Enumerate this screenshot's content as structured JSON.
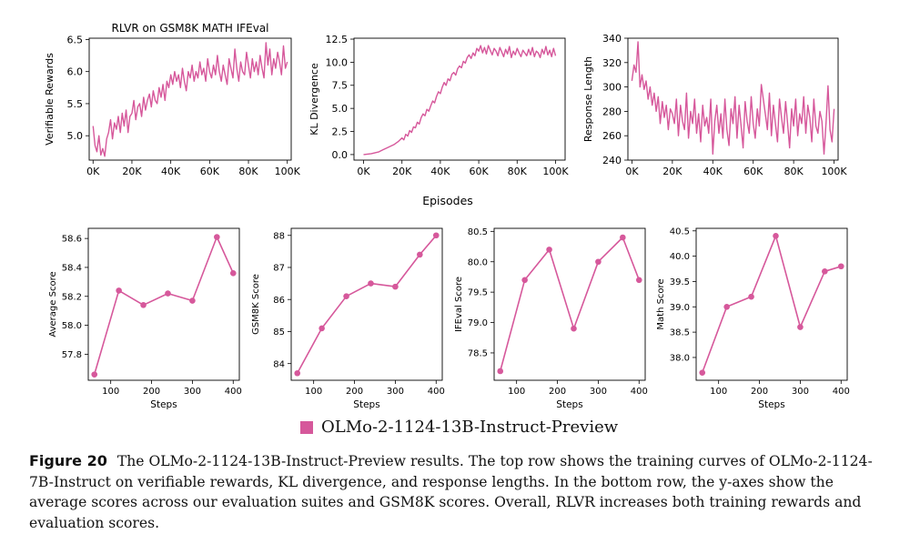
{
  "colors": {
    "series": "#d6589b",
    "axis": "#000000",
    "grid": "#ffffff"
  },
  "top_xlabel": "Episodes",
  "legend": {
    "label": "OLMo-2-1124-13B-Instruct-Preview"
  },
  "caption": {
    "label": "Figure 20",
    "text": "The OLMo-2-1124-13B-Instruct-Preview results. The top row shows the training curves of OLMo-2-1124-7B-Instruct on verifiable rewards, KL divergence, and response lengths. In the bottom row, the y-axes show the average scores across our evaluation suites and GSM8K scores. Overall, RLVR increases both training rewards and evaluation scores."
  },
  "chart_data": [
    {
      "type": "line",
      "title": "RLVR on GSM8K MATH IFEval",
      "xlabel": "",
      "ylabel": "Verifiable Rewards",
      "xlim": [
        -2000,
        102000
      ],
      "ylim": [
        4.62,
        6.52
      ],
      "xticks": [
        0,
        20000,
        40000,
        60000,
        80000,
        100000
      ],
      "xticklabels": [
        "0K",
        "20K",
        "40K",
        "60K",
        "80K",
        "100K"
      ],
      "yticks": [
        5.0,
        5.5,
        6.0,
        6.5
      ],
      "yticklabels": [
        "5.0",
        "5.5",
        "6.0",
        "6.5"
      ],
      "x": [
        0,
        1000,
        2000,
        3000,
        4000,
        5000,
        6000,
        7000,
        8000,
        9000,
        10000,
        11000,
        12000,
        13000,
        14000,
        15000,
        16000,
        17000,
        18000,
        19000,
        20000,
        21000,
        22000,
        23000,
        24000,
        25000,
        26000,
        27000,
        28000,
        29000,
        30000,
        31000,
        32000,
        33000,
        34000,
        35000,
        36000,
        37000,
        38000,
        39000,
        40000,
        41000,
        42000,
        43000,
        44000,
        45000,
        46000,
        47000,
        48000,
        49000,
        50000,
        51000,
        52000,
        53000,
        54000,
        55000,
        56000,
        57000,
        58000,
        59000,
        60000,
        61000,
        62000,
        63000,
        64000,
        65000,
        66000,
        67000,
        68000,
        69000,
        70000,
        71000,
        72000,
        73000,
        74000,
        75000,
        76000,
        77000,
        78000,
        79000,
        80000,
        81000,
        82000,
        83000,
        84000,
        85000,
        86000,
        87000,
        88000,
        89000,
        90000,
        91000,
        92000,
        93000,
        94000,
        95000,
        96000,
        97000,
        98000,
        99000,
        100000
      ],
      "y": [
        5.15,
        4.85,
        4.75,
        5.0,
        4.7,
        4.8,
        4.68,
        4.95,
        5.05,
        5.25,
        4.95,
        5.2,
        5.1,
        5.3,
        5.05,
        5.35,
        5.15,
        5.4,
        5.05,
        5.3,
        5.35,
        5.55,
        5.25,
        5.45,
        5.5,
        5.3,
        5.6,
        5.4,
        5.55,
        5.65,
        5.45,
        5.7,
        5.55,
        5.5,
        5.75,
        5.6,
        5.8,
        5.55,
        5.85,
        5.75,
        5.95,
        5.8,
        6.0,
        5.85,
        5.95,
        5.75,
        6.05,
        5.85,
        5.7,
        6.0,
        5.9,
        6.1,
        5.85,
        6.0,
        5.9,
        6.15,
        5.95,
        6.05,
        5.85,
        6.2,
        6.0,
        5.9,
        6.1,
        5.95,
        6.25,
        6.0,
        5.85,
        6.1,
        5.95,
        5.8,
        6.2,
        6.05,
        5.9,
        6.35,
        6.05,
        5.85,
        6.15,
        6.0,
        5.95,
        6.3,
        6.1,
        5.9,
        6.2,
        6.0,
        6.15,
        5.95,
        6.25,
        6.05,
        5.9,
        6.45,
        6.1,
        6.35,
        5.95,
        6.2,
        6.05,
        6.3,
        6.15,
        5.95,
        6.4,
        6.05,
        6.15
      ]
    },
    {
      "type": "line",
      "title": "",
      "xlabel": "",
      "ylabel": "KL Divergence",
      "xlim": [
        -5000,
        105000
      ],
      "ylim": [
        -0.6,
        12.6
      ],
      "xticks": [
        0,
        20000,
        40000,
        60000,
        80000,
        100000
      ],
      "xticklabels": [
        "0K",
        "20K",
        "40K",
        "60K",
        "80K",
        "100K"
      ],
      "yticks": [
        0.0,
        2.5,
        5.0,
        7.5,
        10.0,
        12.5
      ],
      "yticklabels": [
        "0.0",
        "2.5",
        "5.0",
        "7.5",
        "10.0",
        "12.5"
      ],
      "x": [
        0,
        2000,
        4000,
        6000,
        8000,
        10000,
        12000,
        14000,
        16000,
        18000,
        20000,
        21000,
        22000,
        23000,
        24000,
        25000,
        26000,
        27000,
        28000,
        29000,
        30000,
        31000,
        32000,
        33000,
        34000,
        35000,
        36000,
        37000,
        38000,
        39000,
        40000,
        41000,
        42000,
        43000,
        44000,
        45000,
        46000,
        47000,
        48000,
        49000,
        50000,
        51000,
        52000,
        53000,
        54000,
        55000,
        56000,
        57000,
        58000,
        59000,
        60000,
        61000,
        62000,
        63000,
        64000,
        65000,
        66000,
        67000,
        68000,
        69000,
        70000,
        71000,
        72000,
        73000,
        74000,
        75000,
        76000,
        77000,
        78000,
        79000,
        80000,
        81000,
        82000,
        83000,
        84000,
        85000,
        86000,
        87000,
        88000,
        89000,
        90000,
        91000,
        92000,
        93000,
        94000,
        95000,
        96000,
        97000,
        98000,
        99000,
        100000
      ],
      "y": [
        0.0,
        0.05,
        0.1,
        0.2,
        0.3,
        0.5,
        0.7,
        0.9,
        1.1,
        1.4,
        1.8,
        1.6,
        2.2,
        2.0,
        2.6,
        2.4,
        3.0,
        2.9,
        3.5,
        3.3,
        4.0,
        4.4,
        4.2,
        4.9,
        4.7,
        5.3,
        5.8,
        5.6,
        6.3,
        6.8,
        6.6,
        7.3,
        7.8,
        7.5,
        8.2,
        8.0,
        8.7,
        8.9,
        8.6,
        9.3,
        9.6,
        9.4,
        10.1,
        9.9,
        10.5,
        10.8,
        10.4,
        11.0,
        10.7,
        11.5,
        11.2,
        11.8,
        11.0,
        11.6,
        10.9,
        11.8,
        11.3,
        10.8,
        11.5,
        11.2,
        10.7,
        11.6,
        11.1,
        10.6,
        11.4,
        10.9,
        11.7,
        10.5,
        11.2,
        10.8,
        11.5,
        11.0,
        10.6,
        11.3,
        11.0,
        10.7,
        11.4,
        10.8,
        11.6,
        10.6,
        11.2,
        11.0,
        10.5,
        11.4,
        10.9,
        11.7,
        10.8,
        11.3,
        10.6,
        11.5,
        10.7
      ]
    },
    {
      "type": "line",
      "title": "",
      "xlabel": "",
      "ylabel": "Response Length",
      "xlim": [
        -2000,
        102000
      ],
      "ylim": [
        240,
        340
      ],
      "xticks": [
        0,
        20000,
        40000,
        60000,
        80000,
        100000
      ],
      "xticklabels": [
        "0K",
        "20K",
        "40K",
        "60K",
        "80K",
        "100K"
      ],
      "yticks": [
        240,
        260,
        280,
        300,
        320,
        340
      ],
      "yticklabels": [
        "240",
        "260",
        "280",
        "300",
        "320",
        "340"
      ],
      "x": [
        0,
        1000,
        2000,
        3000,
        4000,
        5000,
        6000,
        7000,
        8000,
        9000,
        10000,
        11000,
        12000,
        13000,
        14000,
        15000,
        16000,
        17000,
        18000,
        19000,
        20000,
        21000,
        22000,
        23000,
        24000,
        25000,
        26000,
        27000,
        28000,
        29000,
        30000,
        31000,
        32000,
        33000,
        34000,
        35000,
        36000,
        37000,
        38000,
        39000,
        40000,
        41000,
        42000,
        43000,
        44000,
        45000,
        46000,
        47000,
        48000,
        49000,
        50000,
        51000,
        52000,
        53000,
        54000,
        55000,
        56000,
        57000,
        58000,
        59000,
        60000,
        61000,
        62000,
        63000,
        64000,
        65000,
        66000,
        67000,
        68000,
        69000,
        70000,
        71000,
        72000,
        73000,
        74000,
        75000,
        76000,
        77000,
        78000,
        79000,
        80000,
        81000,
        82000,
        83000,
        84000,
        85000,
        86000,
        87000,
        88000,
        89000,
        90000,
        91000,
        92000,
        93000,
        94000,
        95000,
        96000,
        97000,
        98000,
        99000,
        100000
      ],
      "y": [
        305,
        318,
        312,
        337,
        300,
        310,
        298,
        305,
        290,
        300,
        285,
        295,
        280,
        292,
        270,
        288,
        275,
        285,
        265,
        282,
        278,
        270,
        290,
        260,
        285,
        272,
        265,
        295,
        258,
        280,
        270,
        290,
        262,
        278,
        255,
        285,
        268,
        275,
        262,
        290,
        245,
        272,
        285,
        262,
        278,
        258,
        290,
        265,
        252,
        282,
        270,
        292,
        258,
        285,
        268,
        250,
        288,
        272,
        262,
        292,
        270,
        258,
        282,
        268,
        302,
        290,
        278,
        265,
        295,
        260,
        285,
        270,
        255,
        290,
        275,
        262,
        288,
        270,
        250,
        282,
        268,
        290,
        260,
        278,
        270,
        292,
        262,
        285,
        275,
        255,
        290,
        268,
        262,
        280,
        272,
        245,
        270,
        301,
        265,
        255,
        282
      ]
    },
    {
      "type": "line",
      "title": "",
      "xlabel": "Steps",
      "ylabel": "Average Score",
      "xlim": [
        45,
        415
      ],
      "ylim": [
        57.62,
        58.67
      ],
      "xticks": [
        100,
        200,
        300,
        400
      ],
      "xticklabels": [
        "100",
        "200",
        "300",
        "400"
      ],
      "yticks": [
        57.8,
        58.0,
        58.2,
        58.4,
        58.6
      ],
      "yticklabels": [
        "57.8",
        "58.0",
        "58.2",
        "58.4",
        "58.6"
      ],
      "x": [
        60,
        120,
        180,
        240,
        300,
        360,
        400
      ],
      "y": [
        57.66,
        58.24,
        58.14,
        58.22,
        58.17,
        58.61,
        58.36
      ],
      "markers": true
    },
    {
      "type": "line",
      "title": "",
      "xlabel": "Steps",
      "ylabel": "GSM8K Score",
      "xlim": [
        45,
        415
      ],
      "ylim": [
        83.48,
        88.22
      ],
      "xticks": [
        100,
        200,
        300,
        400
      ],
      "xticklabels": [
        "100",
        "200",
        "300",
        "400"
      ],
      "yticks": [
        84,
        85,
        86,
        87,
        88
      ],
      "yticklabels": [
        "84",
        "85",
        "86",
        "87",
        "88"
      ],
      "x": [
        60,
        120,
        180,
        240,
        300,
        360,
        400
      ],
      "y": [
        83.7,
        85.1,
        86.1,
        86.5,
        86.4,
        87.4,
        88.0
      ],
      "markers": true
    },
    {
      "type": "line",
      "title": "",
      "xlabel": "Steps",
      "ylabel": "IFEval Score",
      "xlim": [
        45,
        415
      ],
      "ylim": [
        78.05,
        80.55
      ],
      "xticks": [
        100,
        200,
        300,
        400
      ],
      "xticklabels": [
        "100",
        "200",
        "300",
        "400"
      ],
      "yticks": [
        78.5,
        79.0,
        79.5,
        80.0,
        80.5
      ],
      "yticklabels": [
        "78.5",
        "79.0",
        "79.5",
        "80.0",
        "80.5"
      ],
      "x": [
        60,
        120,
        180,
        240,
        300,
        360,
        400
      ],
      "y": [
        78.2,
        79.7,
        80.2,
        78.9,
        80.0,
        80.4,
        79.7
      ],
      "markers": true
    },
    {
      "type": "line",
      "title": "",
      "xlabel": "Steps",
      "ylabel": "Math Score",
      "xlim": [
        45,
        415
      ],
      "ylim": [
        37.55,
        40.55
      ],
      "xticks": [
        100,
        200,
        300,
        400
      ],
      "xticklabels": [
        "100",
        "200",
        "300",
        "400"
      ],
      "yticks": [
        38.0,
        38.5,
        39.0,
        39.5,
        40.0,
        40.5
      ],
      "yticklabels": [
        "38.0",
        "38.5",
        "39.0",
        "39.5",
        "40.0",
        "40.5"
      ],
      "x": [
        60,
        120,
        180,
        240,
        300,
        360,
        400
      ],
      "y": [
        37.7,
        39.0,
        39.2,
        40.4,
        38.6,
        39.7,
        39.8
      ],
      "markers": true
    }
  ]
}
